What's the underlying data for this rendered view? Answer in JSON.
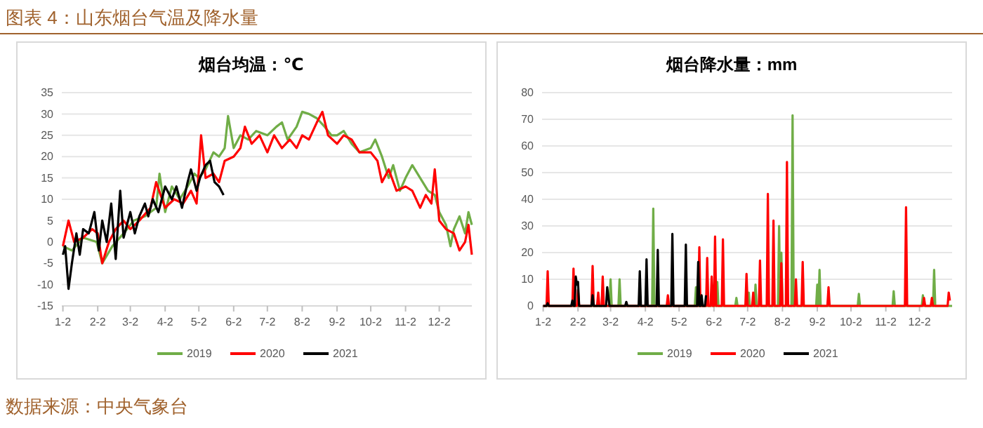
{
  "chart_data": [
    {
      "type": "line",
      "title": "烟台均温：℃",
      "annotations": [
        "图表 4：山东烟台气温及降水量"
      ],
      "xlim": [
        "--01-01",
        "--12-31"
      ],
      "xticks": [
        {
          "value": "--01-02",
          "label": "1-2"
        },
        {
          "value": "--02-02",
          "label": "2-2"
        },
        {
          "value": "--03-02",
          "label": "3-2"
        },
        {
          "value": "--04-02",
          "label": "4-2"
        },
        {
          "value": "--05-02",
          "label": "5-2"
        },
        {
          "value": "--06-02",
          "label": "6-2"
        },
        {
          "value": "--07-02",
          "label": "7-2"
        },
        {
          "value": "--08-02",
          "label": "8-2"
        },
        {
          "value": "--09-02",
          "label": "9-2"
        },
        {
          "value": "--10-02",
          "label": "10-2"
        },
        {
          "value": "--11-02",
          "label": "11-2"
        },
        {
          "value": "--12-02",
          "label": "12-2"
        }
      ],
      "ylim": [
        -15,
        35
      ],
      "yticks": [
        -15,
        -10,
        -5,
        0,
        5,
        10,
        15,
        20,
        25,
        30,
        35
      ],
      "grid": "y",
      "legend": "bottom",
      "line_style": "solid",
      "marker": "none",
      "series": [
        {
          "name": "2019",
          "color": "#70ad47",
          "x": [
            "--01-02",
            "--01-10",
            "--01-20",
            "--02-01",
            "--02-06",
            "--02-15",
            "--02-25",
            "--03-05",
            "--03-15",
            "--03-25",
            "--03-28",
            "--04-02",
            "--04-08",
            "--04-15",
            "--04-22",
            "--04-28",
            "--05-02",
            "--05-08",
            "--05-15",
            "--05-20",
            "--05-25",
            "--05-28",
            "--06-02",
            "--06-08",
            "--06-15",
            "--06-22",
            "--07-02",
            "--07-10",
            "--07-15",
            "--07-20",
            "--07-28",
            "--08-02",
            "--08-08",
            "--08-15",
            "--08-22",
            "--08-28",
            "--09-02",
            "--09-08",
            "--09-15",
            "--09-22",
            "--10-02",
            "--10-06",
            "--10-12",
            "--10-18",
            "--10-22",
            "--10-28",
            "--11-02",
            "--11-08",
            "--11-15",
            "--11-22",
            "--11-28",
            "--12-02",
            "--12-08",
            "--12-12",
            "--12-15",
            "--12-20",
            "--12-25",
            "--12-28",
            "--12-31"
          ],
          "values": [
            -1,
            -2,
            1,
            0,
            -5,
            -1,
            2,
            5,
            6,
            8,
            16,
            7,
            13,
            10,
            13,
            16,
            15,
            17,
            21,
            20,
            22,
            29.5,
            22,
            25,
            24,
            26,
            25,
            27,
            28,
            24,
            27,
            30.5,
            30,
            29,
            27,
            25,
            25,
            26,
            23,
            21,
            22,
            24,
            20,
            15,
            18,
            12,
            15,
            18,
            15,
            12,
            11,
            7,
            4,
            -1,
            3,
            6,
            2,
            7,
            4
          ]
        },
        {
          "name": "2020",
          "color": "#ff0000",
          "x": [
            "--01-02",
            "--01-07",
            "--01-12",
            "--01-20",
            "--01-28",
            "--02-02",
            "--02-06",
            "--02-12",
            "--02-18",
            "--02-25",
            "--03-02",
            "--03-10",
            "--03-20",
            "--03-25",
            "--04-02",
            "--04-10",
            "--04-18",
            "--04-25",
            "--04-30",
            "--05-04",
            "--05-08",
            "--05-15",
            "--05-20",
            "--05-25",
            "--06-02",
            "--06-08",
            "--06-12",
            "--06-18",
            "--06-25",
            "--07-02",
            "--07-08",
            "--07-15",
            "--07-22",
            "--07-28",
            "--08-02",
            "--08-08",
            "--08-15",
            "--08-20",
            "--08-25",
            "--09-02",
            "--09-08",
            "--09-15",
            "--09-22",
            "--10-02",
            "--10-08",
            "--10-12",
            "--10-18",
            "--10-25",
            "--11-02",
            "--11-08",
            "--11-15",
            "--11-20",
            "--11-25",
            "--11-28",
            "--12-02",
            "--12-08",
            "--12-15",
            "--12-20",
            "--12-25",
            "--12-28",
            "--12-31"
          ],
          "values": [
            -1,
            5,
            0,
            1,
            3,
            2,
            -5,
            0,
            3,
            5,
            3,
            5,
            8,
            14,
            8,
            10,
            9,
            12,
            9,
            25,
            15,
            16,
            14,
            19,
            20,
            22,
            27,
            23,
            25,
            21,
            25,
            22,
            24,
            22,
            25,
            24,
            28,
            30.5,
            25,
            23,
            25,
            24,
            21,
            21,
            19,
            14,
            17,
            12,
            13,
            12,
            8,
            11,
            9,
            17,
            5,
            3,
            2,
            -2,
            0,
            4,
            -3
          ]
        },
        {
          "name": "2021",
          "color": "#000000",
          "x": [
            "--01-02",
            "--01-04",
            "--01-07",
            "--01-10",
            "--01-14",
            "--01-17",
            "--01-20",
            "--01-25",
            "--01-30",
            "--02-03",
            "--02-06",
            "--02-10",
            "--02-14",
            "--02-18",
            "--02-22",
            "--02-25",
            "--03-02",
            "--03-06",
            "--03-10",
            "--03-15",
            "--03-18",
            "--03-22",
            "--03-27",
            "--04-02",
            "--04-08",
            "--04-12",
            "--04-17",
            "--04-22",
            "--04-25",
            "--04-30",
            "--05-03",
            "--05-08",
            "--05-12",
            "--05-16",
            "--05-20",
            "--05-24"
          ],
          "values": [
            -3,
            -1,
            -11,
            -5,
            2,
            -3,
            3,
            2,
            7,
            -2,
            5,
            0,
            9,
            -4,
            12,
            1,
            7,
            2,
            6,
            9,
            6,
            10,
            7,
            13,
            10,
            13,
            8,
            14,
            17,
            12,
            15,
            18,
            19,
            14,
            13,
            11
          ]
        }
      ]
    },
    {
      "type": "line",
      "title": "烟台降水量：mm",
      "annotations": [
        "数据来源：中央气象台"
      ],
      "xlim": [
        "--01-01",
        "--12-31"
      ],
      "xticks": [
        {
          "value": "--01-02",
          "label": "1-2"
        },
        {
          "value": "--02-02",
          "label": "2-2"
        },
        {
          "value": "--03-02",
          "label": "3-2"
        },
        {
          "value": "--04-02",
          "label": "4-2"
        },
        {
          "value": "--05-02",
          "label": "5-2"
        },
        {
          "value": "--06-02",
          "label": "6-2"
        },
        {
          "value": "--07-02",
          "label": "7-2"
        },
        {
          "value": "--08-02",
          "label": "8-2"
        },
        {
          "value": "--09-02",
          "label": "9-2"
        },
        {
          "value": "--10-02",
          "label": "10-2"
        },
        {
          "value": "--11-02",
          "label": "11-2"
        },
        {
          "value": "--12-02",
          "label": "12-2"
        }
      ],
      "ylim": [
        0,
        80
      ],
      "yticks": [
        0,
        10,
        20,
        30,
        40,
        50,
        60,
        70,
        80
      ],
      "grid": "y",
      "legend": "bottom",
      "line_style": "solid",
      "marker": "none",
      "series": [
        {
          "name": "2019",
          "color": "#70ad47",
          "x": [
            "--01-02",
            "--03-01",
            "--03-02",
            "--03-03",
            "--03-09",
            "--03-10",
            "--03-11",
            "--04-08",
            "--04-09",
            "--04-10",
            "--05-16",
            "--05-17",
            "--05-18",
            "--06-04",
            "--06-05",
            "--06-06",
            "--06-21",
            "--06-22",
            "--06-23",
            "--07-02",
            "--07-03",
            "--07-04",
            "--07-08",
            "--07-09",
            "--07-10",
            "--07-29",
            "--07-30",
            "--07-31",
            "--08-01",
            "--08-02",
            "--08-10",
            "--08-11",
            "--08-12",
            "--09-01",
            "--09-02",
            "--09-03",
            "--09-04",
            "--09-05",
            "--10-08",
            "--10-09",
            "--10-10",
            "--11-08",
            "--11-09",
            "--11-10",
            "--12-04",
            "--12-05",
            "--12-06",
            "--12-14",
            "--12-15",
            "--12-16",
            "--12-31"
          ],
          "values": [
            0,
            0,
            10,
            0,
            0,
            10,
            0,
            0,
            36.5,
            0,
            0,
            7,
            0,
            0,
            9,
            0,
            0,
            3,
            0,
            0,
            5,
            0,
            0,
            8,
            0,
            0,
            30,
            0,
            20,
            0,
            0,
            71.5,
            0,
            0,
            8,
            0,
            13.5,
            0,
            0,
            4.5,
            0,
            0,
            5.5,
            0,
            0,
            4,
            0,
            0,
            13.5,
            0,
            0
          ]
        },
        {
          "name": "2020",
          "color": "#ff0000",
          "x": [
            "--01-02",
            "--01-05",
            "--01-06",
            "--01-07",
            "--01-28",
            "--01-29",
            "--01-30",
            "--02-01",
            "--02-02",
            "--02-03",
            "--02-14",
            "--02-15",
            "--02-16",
            "--02-19",
            "--02-20",
            "--02-21",
            "--02-23",
            "--02-24",
            "--02-25",
            "--04-21",
            "--04-22",
            "--04-23",
            "--05-19",
            "--05-20",
            "--05-21",
            "--05-26",
            "--05-27",
            "--05-28",
            "--05-30",
            "--05-31",
            "--06-01",
            "--06-02",
            "--06-03",
            "--06-04",
            "--06-09",
            "--06-10",
            "--06-11",
            "--06-30",
            "--07-01",
            "--07-02",
            "--07-06",
            "--07-07",
            "--07-08",
            "--07-12",
            "--07-13",
            "--07-14",
            "--07-19",
            "--07-20",
            "--07-21",
            "--07-24",
            "--07-25",
            "--07-26",
            "--07-31",
            "--08-01",
            "--08-02",
            "--08-05",
            "--08-06",
            "--08-07",
            "--08-13",
            "--08-14",
            "--08-15",
            "--08-19",
            "--08-20",
            "--08-21",
            "--09-11",
            "--09-12",
            "--09-13",
            "--11-19",
            "--11-20",
            "--11-21",
            "--12-05",
            "--12-06",
            "--12-07",
            "--12-12",
            "--12-13",
            "--12-14",
            "--12-27",
            "--12-28",
            "--12-29"
          ],
          "values": [
            0,
            0,
            13,
            0,
            0,
            14,
            0,
            0,
            6,
            0,
            0,
            15,
            0,
            0,
            5,
            0,
            0,
            11,
            0,
            0,
            4,
            0,
            0,
            22,
            0,
            0,
            18,
            0,
            0,
            11,
            0,
            0,
            26,
            0,
            0,
            25,
            0,
            0,
            12,
            0,
            0,
            5,
            0,
            0,
            17,
            0,
            0,
            42,
            0,
            0,
            32,
            0,
            0,
            16,
            0,
            0,
            54,
            0,
            0,
            10,
            0,
            0,
            16.5,
            0,
            0,
            7,
            0,
            0,
            37,
            0,
            0,
            3,
            0,
            0,
            3,
            0,
            0,
            5,
            2
          ]
        },
        {
          "name": "2021",
          "color": "#000000",
          "x": [
            "--01-02",
            "--01-05",
            "--01-06",
            "--01-07",
            "--01-27",
            "--01-28",
            "--01-29",
            "--01-30",
            "--01-31",
            "--02-01",
            "--02-02",
            "--02-03",
            "--02-14",
            "--02-15",
            "--02-16",
            "--02-27",
            "--02-28",
            "--03-01",
            "--03-15",
            "--03-16",
            "--03-17",
            "--03-27",
            "--03-28",
            "--03-29",
            "--04-02",
            "--04-03",
            "--04-04",
            "--04-12",
            "--04-13",
            "--04-14",
            "--04-25",
            "--04-26",
            "--04-27",
            "--05-07",
            "--05-08",
            "--05-09",
            "--05-18",
            "--05-19",
            "--05-20",
            "--05-21",
            "--05-22",
            "--05-23",
            "--05-25",
            "--05-26"
          ],
          "values": [
            0,
            0,
            1,
            0,
            0,
            2,
            0,
            0,
            11,
            8,
            9,
            0,
            0,
            4,
            0,
            0,
            7,
            0,
            0,
            1.5,
            0,
            0,
            13,
            0,
            0,
            17.5,
            0,
            0,
            21,
            0,
            0,
            27,
            0,
            0,
            23,
            0,
            0,
            16.5,
            0,
            0,
            4,
            0,
            0,
            4
          ]
        }
      ]
    }
  ]
}
